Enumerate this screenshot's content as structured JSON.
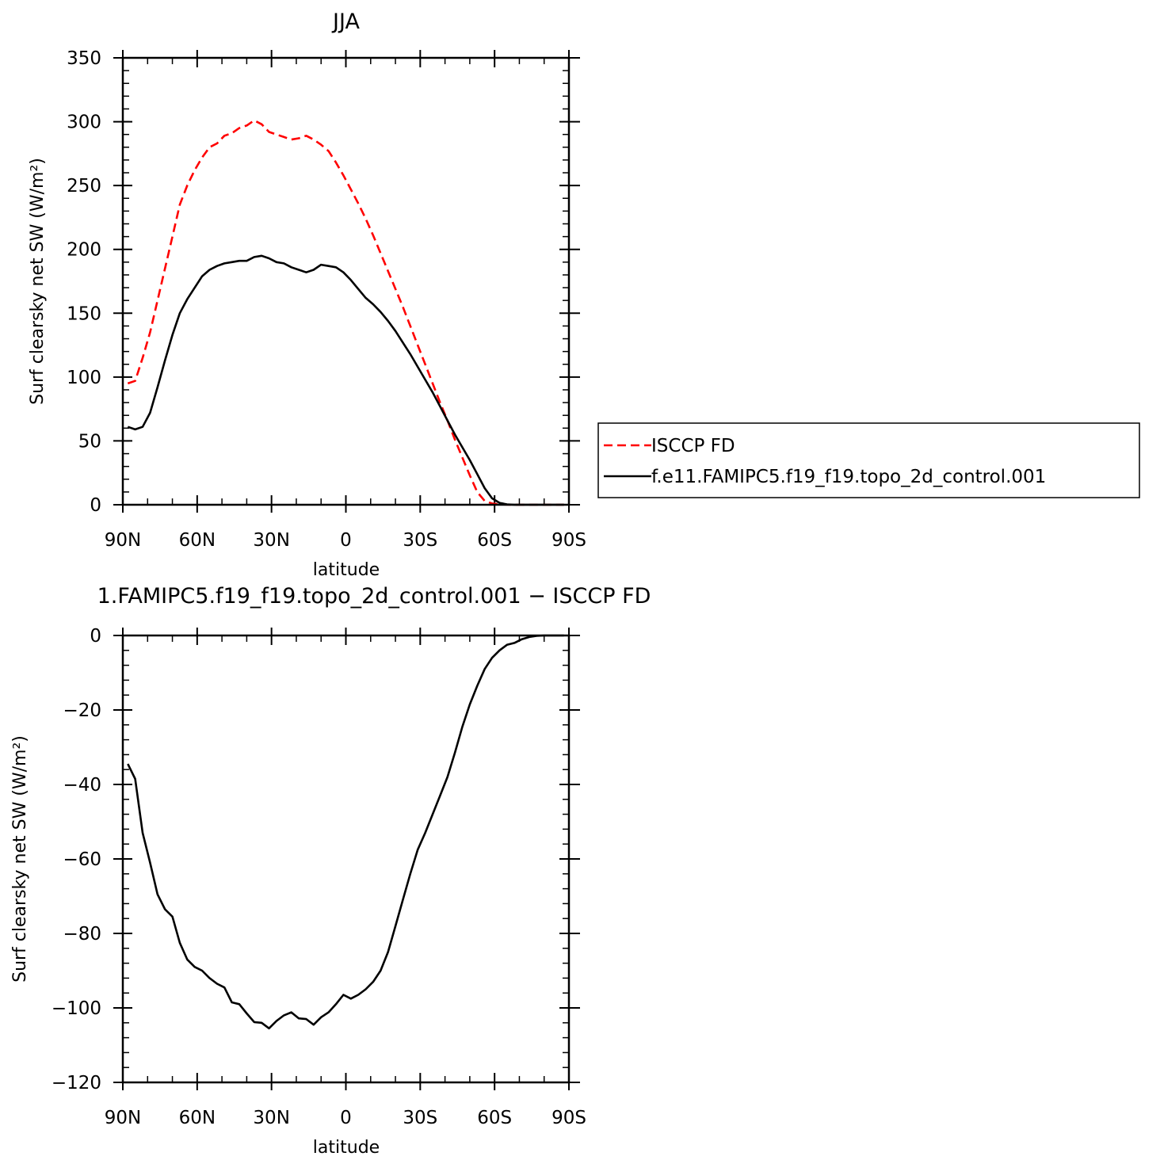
{
  "colors": {
    "obs": "#ff0000",
    "model": "#000000",
    "axis": "#000000",
    "background": "#ffffff"
  },
  "chart_data": [
    {
      "type": "line",
      "title": "JJA",
      "xlabel": "latitude",
      "ylabel": "Surf clearsky net SW (W/m²)",
      "xlim": [
        90,
        -90
      ],
      "ylim": [
        0,
        350
      ],
      "xticks": [
        90,
        60,
        30,
        0,
        -30,
        -60,
        -90
      ],
      "xtick_labels": [
        "90N",
        "60N",
        "30N",
        "0",
        "30S",
        "60S",
        "90S"
      ],
      "yticks": [
        0,
        50,
        100,
        150,
        200,
        250,
        300,
        350
      ],
      "ytick_labels": [
        "0",
        "50",
        "100",
        "150",
        "200",
        "250",
        "300",
        "350"
      ],
      "grid": false,
      "legend_position": "right",
      "series": [
        {
          "name": "ISCCP FD",
          "style": "dashed",
          "color": "#ff0000",
          "x": [
            88,
            85,
            82,
            79,
            76,
            73,
            70,
            67,
            64,
            61,
            58,
            55,
            52,
            49,
            46,
            43,
            40,
            37,
            34,
            31,
            28,
            25,
            22,
            19,
            16,
            13,
            10,
            7,
            4,
            1,
            -2,
            -5,
            -8,
            -11,
            -14,
            -17,
            -20,
            -23,
            -26,
            -29,
            -32,
            -35,
            -38,
            -41,
            -44,
            -47,
            -50,
            -53,
            -56,
            -59,
            -62,
            -65,
            -68,
            -71,
            -74,
            -77,
            -80,
            -83,
            -86,
            -88
          ],
          "y": [
            95,
            97,
            115,
            135,
            160,
            185,
            210,
            235,
            250,
            262,
            272,
            280,
            283,
            289,
            291,
            295,
            297,
            301,
            298,
            292,
            290,
            288,
            286,
            287,
            289,
            286,
            282,
            277,
            268,
            258,
            247,
            236,
            224,
            211,
            197,
            183,
            169,
            155,
            140,
            125,
            110,
            95,
            80,
            66,
            51,
            37,
            23,
            10,
            3,
            1,
            0.3,
            0.1,
            0,
            0,
            0,
            0,
            0,
            0,
            0,
            0
          ]
        },
        {
          "name": "f.e11.FAMIPC5.f19_f19.topo_2d_control.001",
          "style": "solid",
          "color": "#000000",
          "x": [
            88,
            85,
            82,
            79,
            76,
            73,
            70,
            67,
            64,
            61,
            58,
            55,
            52,
            49,
            46,
            43,
            40,
            37,
            34,
            31,
            28,
            25,
            22,
            19,
            16,
            13,
            10,
            7,
            4,
            1,
            -2,
            -5,
            -8,
            -11,
            -14,
            -17,
            -20,
            -23,
            -26,
            -29,
            -32,
            -35,
            -38,
            -41,
            -44,
            -47,
            -50,
            -53,
            -56,
            -59,
            -62,
            -65,
            -68,
            -71,
            -74,
            -77,
            -80,
            -83,
            -86,
            -88
          ],
          "y": [
            61,
            59,
            61,
            72,
            92,
            113,
            133,
            150,
            161,
            170,
            179,
            184,
            187,
            189,
            190,
            191,
            191,
            194,
            195,
            193,
            190,
            189,
            186,
            184,
            182,
            184,
            188,
            187,
            186,
            182,
            176,
            169,
            162,
            157,
            151,
            144,
            136,
            127,
            118,
            108,
            98,
            88,
            77,
            66,
            55,
            45,
            35,
            24,
            13,
            5,
            1.5,
            0.3,
            0,
            0,
            0,
            0,
            0,
            0,
            0,
            0
          ]
        }
      ]
    },
    {
      "type": "line",
      "title": "1.FAMIPC5.f19_f19.topo_2d_control.001 − ISCCP FD",
      "xlabel": "latitude",
      "ylabel": "Surf clearsky net SW (W/m²)",
      "xlim": [
        90,
        -90
      ],
      "ylim": [
        -120,
        0
      ],
      "xticks": [
        90,
        60,
        30,
        0,
        -30,
        -60,
        -90
      ],
      "xtick_labels": [
        "90N",
        "60N",
        "30N",
        "0",
        "30S",
        "60S",
        "90S"
      ],
      "yticks": [
        -120,
        -100,
        -80,
        -60,
        -40,
        -20,
        0
      ],
      "ytick_labels": [
        "−120",
        "−100",
        "−80",
        "−60",
        "−40",
        "−20",
        "0"
      ],
      "grid": false,
      "series": [
        {
          "style": "solid",
          "color": "#000000",
          "x": [
            88,
            85,
            82,
            79,
            76,
            73,
            70,
            67,
            64,
            61,
            58,
            55,
            52,
            49,
            46,
            43,
            40,
            37,
            34,
            31,
            28,
            25,
            22,
            19,
            16,
            13,
            10,
            7,
            4,
            1,
            -2,
            -5,
            -8,
            -11,
            -14,
            -17,
            -20,
            -23,
            -26,
            -29,
            -32,
            -35,
            -38,
            -41,
            -44,
            -47,
            -50,
            -53,
            -56,
            -59,
            -62,
            -65,
            -68,
            -71,
            -74,
            -77,
            -80,
            -83,
            -86,
            -88
          ],
          "y": [
            -34.5,
            -38.5,
            -53,
            -61,
            -69.5,
            -73.5,
            -75.5,
            -82.5,
            -87,
            -89,
            -90,
            -92,
            -93.5,
            -94.5,
            -98.5,
            -99,
            -101.5,
            -103.8,
            -104,
            -105.5,
            -103.5,
            -102,
            -101.2,
            -102.8,
            -103,
            -104.5,
            -102.5,
            -101.2,
            -99,
            -96.5,
            -97.5,
            -96.5,
            -95,
            -93,
            -90,
            -85,
            -78,
            -71,
            -64,
            -57.5,
            -53,
            -48,
            -43,
            -38,
            -31.5,
            -24.5,
            -18.5,
            -13.5,
            -9,
            -6,
            -4,
            -2.5,
            -2,
            -1,
            -0.4,
            -0.1,
            0,
            0,
            0,
            0
          ]
        }
      ]
    }
  ]
}
